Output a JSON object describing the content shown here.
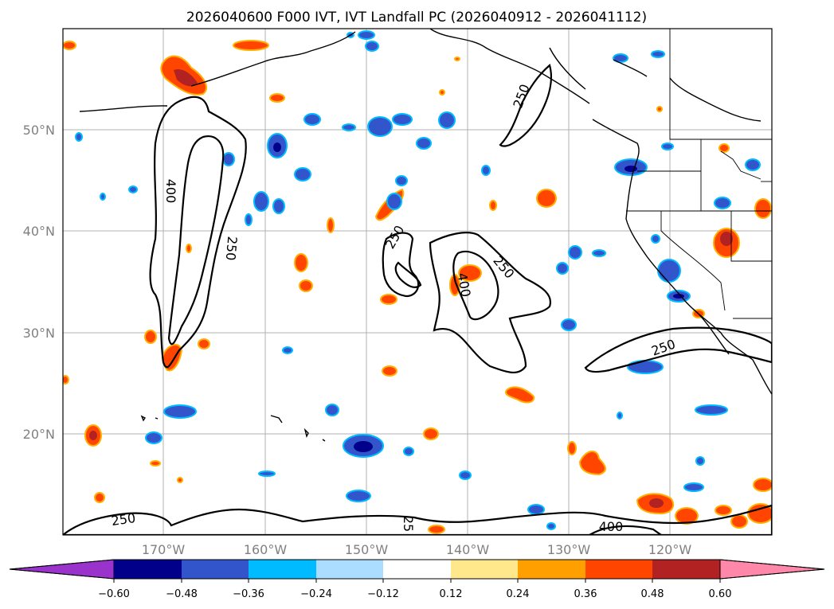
{
  "title": "2026040600 F000 IVT, IVT Landfall PC (2026040912 - 2026041112)",
  "lat_labels": [
    "50°N",
    "40°N",
    "30°N",
    "20°N"
  ],
  "lon_labels": [
    "170°W",
    "160°W",
    "150°W",
    "140°W",
    "130°W",
    "120°W"
  ],
  "contour_labels": [
    "400",
    "250",
    "250",
    "400",
    "250",
    "250",
    "250",
    "250",
    "25",
    "400"
  ],
  "colorbar": {
    "colors": [
      "#9933cc",
      "#00008b",
      "#3355cc",
      "#00bbff",
      "#aaddff",
      "#ffffff",
      "#ffe88c",
      "#ff9f00",
      "#ff4500",
      "#b22222",
      "#ff88aa"
    ],
    "tick_labels": [
      "−0.60",
      "−0.48",
      "−0.36",
      "−0.24",
      "−0.12",
      "0.12",
      "0.24",
      "0.36",
      "0.48",
      "0.60"
    ]
  }
}
